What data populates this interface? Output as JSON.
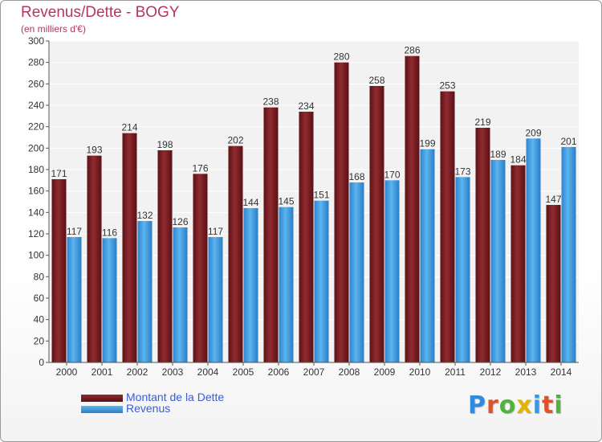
{
  "chart_data": {
    "type": "bar",
    "title": "Revenus/Dette - BOGY",
    "subtitle": "(en milliers d'€)",
    "categories": [
      "2000",
      "2001",
      "2002",
      "2003",
      "2004",
      "2005",
      "2006",
      "2007",
      "2008",
      "2009",
      "2010",
      "2011",
      "2012",
      "2013",
      "2014"
    ],
    "series": [
      {
        "name": "Montant de la Dette",
        "values": [
          171,
          193,
          214,
          198,
          176,
          202,
          238,
          234,
          280,
          258,
          286,
          253,
          219,
          184,
          147
        ],
        "color": "#7a1e22"
      },
      {
        "name": "Revenus",
        "values": [
          117,
          116,
          132,
          126,
          117,
          144,
          145,
          151,
          168,
          170,
          199,
          173,
          189,
          209,
          201
        ],
        "color": "#3a98de"
      }
    ],
    "ylim": [
      0,
      300
    ],
    "yticks": [
      0,
      20,
      40,
      60,
      80,
      100,
      120,
      140,
      160,
      180,
      200,
      220,
      240,
      260,
      280,
      300
    ],
    "grid": true,
    "legend_position": "bottom-left"
  },
  "logo": {
    "text": "Proxiti",
    "colors": [
      "#2f8be0",
      "#e0522b",
      "#4fb33c",
      "#e2b400",
      "#3a98de",
      "#e0522b",
      "#4fb33c"
    ]
  }
}
